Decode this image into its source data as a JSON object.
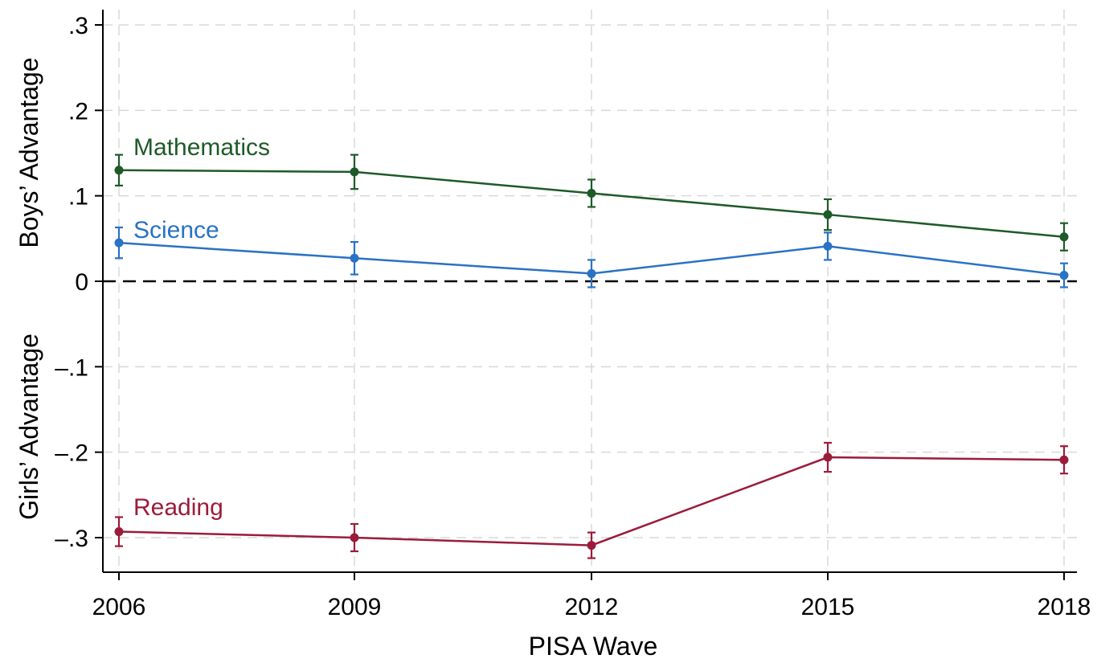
{
  "chart_data": {
    "type": "line",
    "x": [
      2006,
      2009,
      2012,
      2015,
      2018
    ],
    "xlabel": "PISA Wave",
    "ylabel_upper": "Boys’ Advantage",
    "ylabel_lower": "Girls’ Advantage",
    "ylim": [
      -0.34,
      0.32
    ],
    "yticks": [
      {
        "value": 0.3,
        "label": ".3"
      },
      {
        "value": 0.2,
        "label": ".2"
      },
      {
        "value": 0.1,
        "label": ".1"
      },
      {
        "value": 0,
        "label": "0"
      },
      {
        "value": -0.1,
        "label": "–.1"
      },
      {
        "value": -0.2,
        "label": "–.2"
      },
      {
        "value": -0.3,
        "label": "–.3"
      }
    ],
    "xticks": [
      "2006",
      "2009",
      "2012",
      "2015",
      "2018"
    ],
    "grid": true,
    "reference_line": 0,
    "series": [
      {
        "name": "Mathematics",
        "color": "#1e5a28",
        "values": [
          0.13,
          0.128,
          0.103,
          0.078,
          0.052
        ],
        "error": [
          0.018,
          0.02,
          0.016,
          0.018,
          0.016
        ]
      },
      {
        "name": "Science",
        "color": "#2a72c4",
        "values": [
          0.045,
          0.027,
          0.009,
          0.041,
          0.007
        ],
        "error": [
          0.018,
          0.019,
          0.016,
          0.016,
          0.014
        ]
      },
      {
        "name": "Reading",
        "color": "#9b1c3a",
        "values": [
          -0.293,
          -0.3,
          -0.309,
          -0.206,
          -0.209
        ],
        "error": [
          0.017,
          0.016,
          0.015,
          0.017,
          0.016
        ]
      }
    ]
  }
}
